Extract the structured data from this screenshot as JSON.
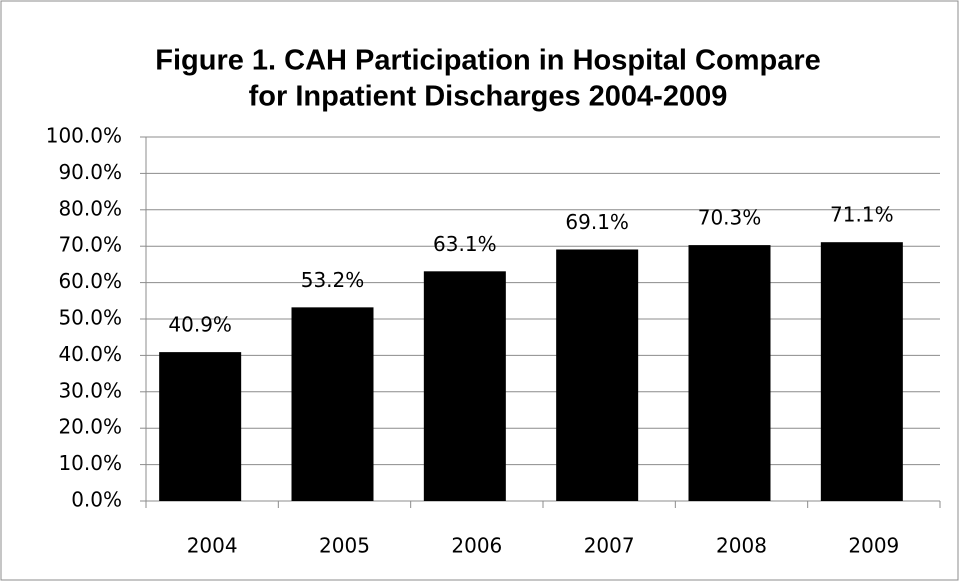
{
  "chart_data": {
    "type": "bar",
    "title": [
      "Figure 1. CAH Participation in Hospital Compare",
      "for Inpatient Discharges 2004-2009"
    ],
    "categories": [
      "2004",
      "2005",
      "2006",
      "2007",
      "2008",
      "2009"
    ],
    "values": [
      40.9,
      53.2,
      63.1,
      69.1,
      70.3,
      71.1
    ],
    "value_labels": [
      "40.9%",
      "53.2%",
      "63.1%",
      "69.1%",
      "70.3%",
      "71.1%"
    ],
    "color": "#000000",
    "ylim": [
      0,
      100
    ],
    "yticks": [
      {
        "value": 0,
        "label": "0.0%"
      },
      {
        "value": 10,
        "label": "10.0%"
      },
      {
        "value": 20,
        "label": "20.0%"
      },
      {
        "value": 30,
        "label": "30.0%"
      },
      {
        "value": 40,
        "label": "40.0%"
      },
      {
        "value": 50,
        "label": "50.0%"
      },
      {
        "value": 60,
        "label": "60.0%"
      },
      {
        "value": 70,
        "label": "70.0%"
      },
      {
        "value": 80,
        "label": "80.0%"
      },
      {
        "value": 90,
        "label": "90.0%"
      },
      {
        "value": 100,
        "label": "100.0%"
      }
    ],
    "grid": true
  }
}
